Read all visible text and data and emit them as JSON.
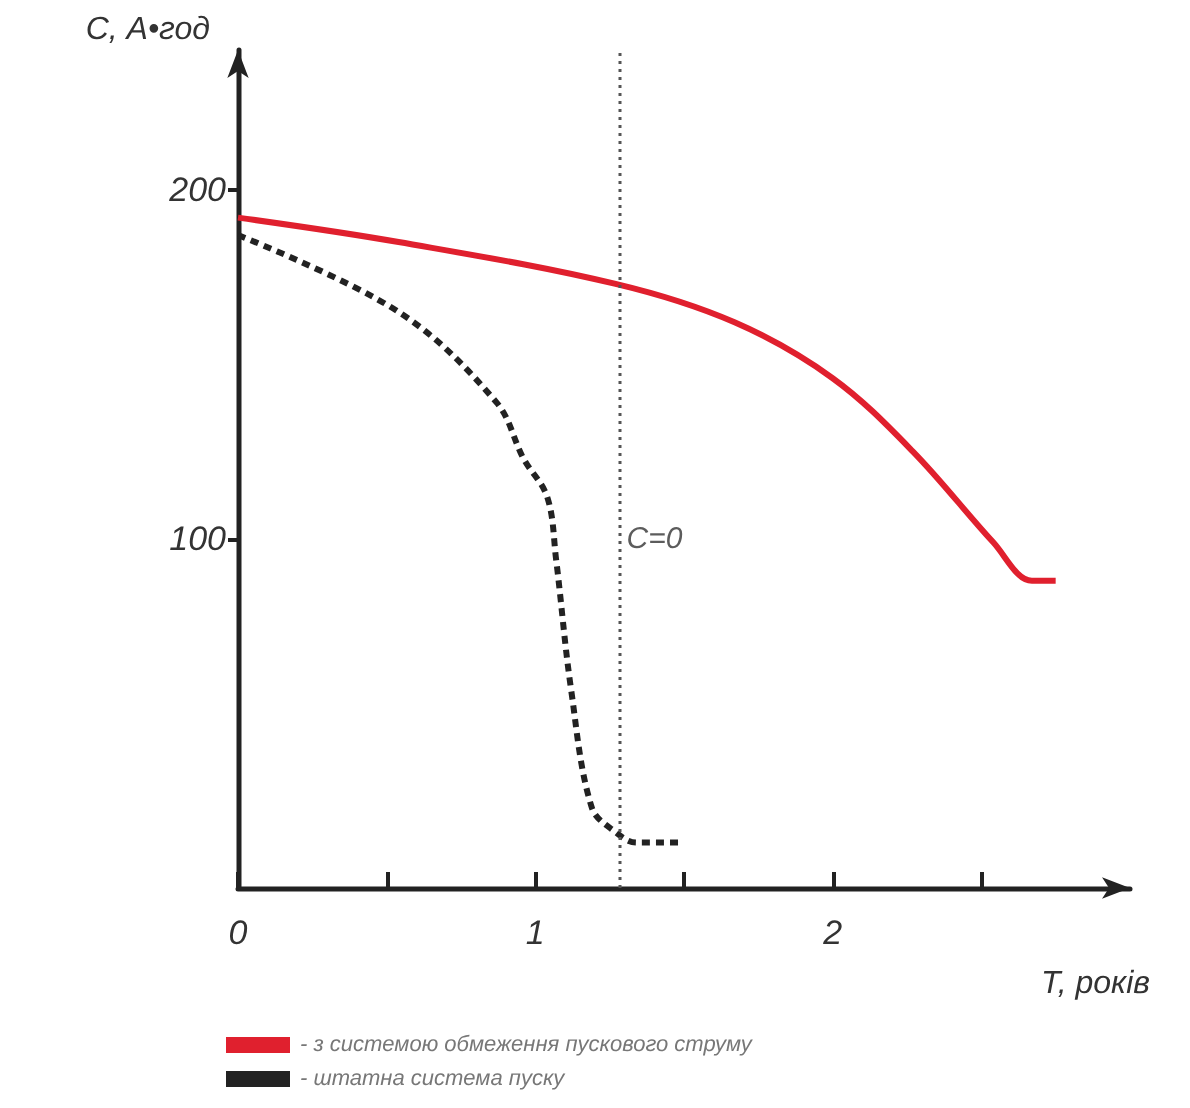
{
  "chart_data": {
    "type": "line",
    "xlabel": "T, років",
    "ylabel": "C, А•год",
    "xlim": [
      0,
      3
    ],
    "ylim": [
      0,
      240
    ],
    "xticks": [
      0,
      {
        "value": 0.5,
        "label": null
      },
      1,
      {
        "value": 1.5,
        "label": null
      },
      2,
      {
        "value": 2.5,
        "label": null
      }
    ],
    "yticks": [
      100,
      200
    ],
    "grid": false,
    "legend": "bottom left",
    "marker": "none",
    "ref_lines": [
      {
        "axis": "x",
        "value": 1.28,
        "color": "#555555",
        "line_style": "dotted"
      }
    ],
    "annotations": [
      {
        "text": "C=0",
        "x": 1.28,
        "y": 100
      }
    ],
    "series": [
      {
        "name": "- з системою обмеження пускового струму",
        "color": "#e0202e",
        "line_style": "solid",
        "x": [
          0,
          0.54,
          1.27,
          1.67,
          2.0,
          2.27,
          2.54,
          2.67,
          2.75
        ],
        "values": [
          192,
          185,
          173,
          162,
          146,
          125,
          99,
          88,
          88
        ]
      },
      {
        "name": "- штатна система пуску",
        "color": "#222222",
        "line_style": "dashed",
        "x": [
          0,
          0.54,
          0.87,
          0.96,
          1.04,
          1.07,
          1.12,
          1.19,
          1.27,
          1.34,
          1.48
        ],
        "values": [
          187,
          165,
          139,
          123,
          112,
          94,
          57,
          23,
          16,
          13,
          13
        ]
      }
    ]
  }
}
